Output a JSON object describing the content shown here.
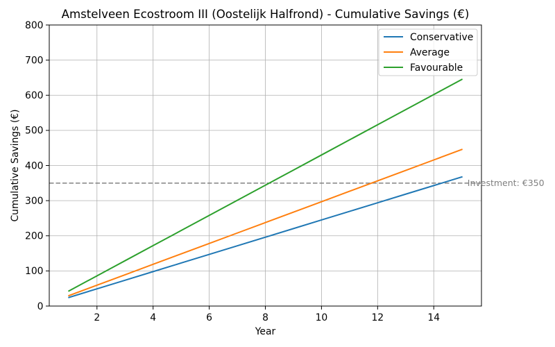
{
  "chart_data": {
    "type": "line",
    "title": "Amstelveen Ecostroom III (Oostelijk Halfrond) - Cumulative Savings (€)",
    "xlabel": "Year",
    "ylabel": "Cumulative Savings (€)",
    "x": [
      1,
      2,
      3,
      4,
      5,
      6,
      7,
      8,
      9,
      10,
      11,
      12,
      13,
      14,
      15
    ],
    "series": [
      {
        "name": "Conservative",
        "color": "#1f77b4",
        "values": [
          24.5,
          49.0,
          73.5,
          98.0,
          122.5,
          147.0,
          171.5,
          196.0,
          220.5,
          245.0,
          269.5,
          294.0,
          318.5,
          343.0,
          367.5
        ]
      },
      {
        "name": "Average",
        "color": "#ff7f0e",
        "values": [
          29.7,
          59.4,
          89.1,
          118.8,
          148.5,
          178.2,
          207.9,
          237.6,
          267.3,
          297.0,
          326.7,
          356.4,
          386.1,
          415.8,
          445.5
        ]
      },
      {
        "name": "Favourable",
        "color": "#2ca02c",
        "values": [
          43,
          86,
          129,
          172,
          215,
          258,
          301,
          344,
          387,
          430,
          473,
          516,
          559,
          602,
          645
        ]
      }
    ],
    "xlim": [
      0.3,
      15.7
    ],
    "ylim": [
      0,
      800
    ],
    "x_ticks": [
      2,
      4,
      6,
      8,
      10,
      12,
      14
    ],
    "y_ticks": [
      0,
      100,
      200,
      300,
      400,
      500,
      600,
      700,
      800
    ],
    "grid": true,
    "legend": "top-right",
    "reference_line": {
      "y": 350,
      "label": "Investment: €350",
      "style": "dashed",
      "color": "#808080"
    }
  }
}
